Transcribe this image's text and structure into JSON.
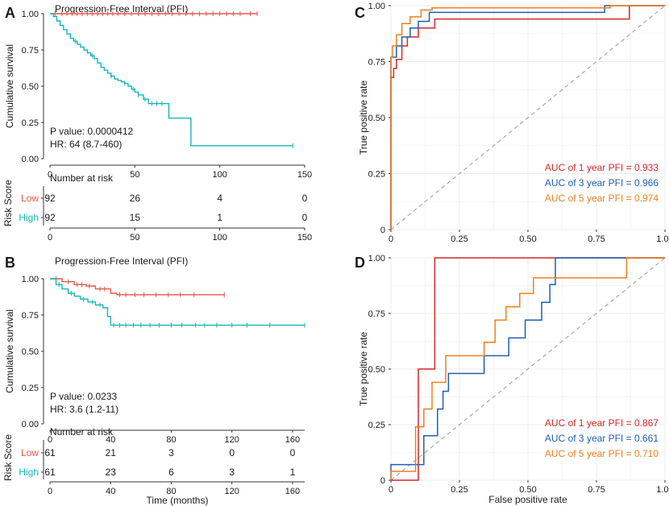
{
  "colors": {
    "low": "#e8564a",
    "high": "#16b6b6",
    "auc1": "#d62728",
    "auc3": "#1f5fb4",
    "auc5": "#f07f1e",
    "grid": "#ececec",
    "diag": "#9a9a9a"
  },
  "chart_data": [
    {
      "type": "line",
      "subtype": "kaplan-meier",
      "panel_label": "A",
      "title": "Progression-Free Interval (PFI)",
      "ylabel": "Cumulative survival",
      "xlabel": "",
      "xlim": [
        0,
        150
      ],
      "ylim": [
        0,
        1
      ],
      "xticks": [
        0,
        50,
        100,
        150
      ],
      "yticks": [
        0,
        0.25,
        0.5,
        0.75,
        1.0
      ],
      "ytick_labels": [
        "0.00",
        "0.25",
        "0.50",
        "0.75",
        "1.00"
      ],
      "p_value": "P value: 0.0000412",
      "hr": "HR: 64 (8.7-460)",
      "series": [
        {
          "name": "Low",
          "key": "low",
          "x": [
            0,
            122
          ],
          "y": [
            1.0,
            1.0
          ],
          "censor_x": [
            3,
            7,
            10,
            13,
            16,
            19,
            22,
            25,
            28,
            31,
            34,
            37,
            40,
            44,
            48,
            52,
            56,
            60,
            64,
            68,
            72,
            76,
            80,
            84,
            88,
            92,
            96,
            100,
            104,
            108,
            112,
            118,
            122
          ]
        },
        {
          "name": "High",
          "key": "high",
          "x": [
            0,
            2,
            4,
            6,
            8,
            10,
            12,
            14,
            16,
            18,
            20,
            22,
            24,
            26,
            28,
            30,
            32,
            34,
            36,
            38,
            40,
            42,
            44,
            46,
            48,
            50,
            52,
            55,
            58,
            62,
            66,
            70,
            76,
            83,
            143
          ],
          "y": [
            1.0,
            0.98,
            0.95,
            0.92,
            0.89,
            0.86,
            0.83,
            0.81,
            0.79,
            0.77,
            0.75,
            0.73,
            0.71,
            0.69,
            0.66,
            0.63,
            0.61,
            0.59,
            0.57,
            0.55,
            0.54,
            0.53,
            0.52,
            0.5,
            0.48,
            0.46,
            0.44,
            0.41,
            0.38,
            0.38,
            0.38,
            0.28,
            0.28,
            0.09,
            0.09
          ],
          "censor_x": [
            15,
            25,
            36,
            44,
            49,
            52,
            56,
            60,
            63,
            66,
            143
          ]
        }
      ],
      "risk_table": {
        "title": "Number at risk",
        "ylabel": "Risk Score",
        "times": [
          0,
          50,
          100,
          150
        ],
        "rows": [
          {
            "name": "Low",
            "key": "low",
            "values": [
              "92",
              "26",
              "4",
              "0"
            ]
          },
          {
            "name": "High",
            "key": "high",
            "values": [
              "92",
              "15",
              "1",
              "0"
            ]
          }
        ],
        "xticks": [
          0,
          50,
          100,
          150
        ]
      }
    },
    {
      "type": "line",
      "subtype": "kaplan-meier",
      "panel_label": "B",
      "title": "Progression-Free Interval (PFI)",
      "ylabel": "Cumulative survival",
      "xlabel": "Time (months)",
      "xlim": [
        0,
        168
      ],
      "ylim": [
        0,
        1
      ],
      "xticks": [
        0,
        40,
        80,
        120,
        160
      ],
      "yticks": [
        0,
        0.25,
        0.5,
        0.75,
        1.0
      ],
      "ytick_labels": [
        "0.00",
        "0.25",
        "0.50",
        "0.75",
        "1.00"
      ],
      "p_value": "P value: 0.0233",
      "hr": "HR: 3.6 (1.2-11)",
      "series": [
        {
          "name": "Low",
          "key": "low",
          "x": [
            0,
            8,
            16,
            24,
            30,
            40,
            44,
            115
          ],
          "y": [
            1.0,
            0.98,
            0.96,
            0.95,
            0.93,
            0.9,
            0.89,
            0.89
          ],
          "censor_x": [
            4,
            12,
            18,
            21,
            26,
            33,
            36,
            46,
            50,
            56,
            62,
            70,
            78,
            86,
            95,
            115
          ]
        },
        {
          "name": "High",
          "key": "high",
          "x": [
            0,
            4,
            8,
            12,
            16,
            20,
            25,
            30,
            35,
            38,
            40,
            168
          ],
          "y": [
            1.0,
            0.96,
            0.93,
            0.9,
            0.88,
            0.86,
            0.84,
            0.82,
            0.8,
            0.74,
            0.68,
            0.68
          ],
          "censor_x": [
            6,
            14,
            22,
            28,
            33,
            42,
            46,
            50,
            55,
            60,
            66,
            72,
            80,
            87,
            96,
            102,
            110,
            120,
            130,
            145,
            168
          ]
        }
      ],
      "risk_table": {
        "title": "Number at risk",
        "ylabel": "Risk Score",
        "times": [
          0,
          40,
          80,
          120,
          160
        ],
        "rows": [
          {
            "name": "Low",
            "key": "low",
            "values": [
              "61",
              "21",
              "3",
              "0",
              "0"
            ]
          },
          {
            "name": "High",
            "key": "high",
            "values": [
              "61",
              "23",
              "6",
              "3",
              "1"
            ]
          }
        ],
        "xticks": [
          0,
          40,
          80,
          120,
          160
        ]
      }
    },
    {
      "type": "line",
      "subtype": "roc",
      "panel_label": "C",
      "title": "",
      "xlabel": "",
      "ylabel": "True positive rate",
      "xlim": [
        0,
        1
      ],
      "ylim": [
        0,
        1
      ],
      "xticks": [
        0,
        0.25,
        0.5,
        0.75,
        1.0
      ],
      "tick_labels": [
        "0",
        "0.25",
        "0.50",
        "0.75",
        "1.00"
      ],
      "legend_position": "bottom-right",
      "series": [
        {
          "name": "AUC of 1 year PFI = 0.933",
          "key": "auc1",
          "x": [
            0,
            0,
            0.01,
            0.01,
            0.02,
            0.02,
            0.04,
            0.04,
            0.06,
            0.06,
            0.1,
            0.1,
            0.16,
            0.16,
            0.87,
            0.87,
            1.0
          ],
          "y": [
            0,
            0.68,
            0.68,
            0.72,
            0.72,
            0.76,
            0.76,
            0.82,
            0.82,
            0.86,
            0.86,
            0.9,
            0.9,
            0.94,
            0.94,
            1.0,
            1.0
          ]
        },
        {
          "name": "AUC of 3 year PFI = 0.966",
          "key": "auc3",
          "x": [
            0,
            0,
            0.02,
            0.02,
            0.04,
            0.04,
            0.07,
            0.07,
            0.1,
            0.1,
            0.14,
            0.14,
            0.78,
            0.78,
            1.0
          ],
          "y": [
            0,
            0.77,
            0.77,
            0.82,
            0.82,
            0.86,
            0.86,
            0.9,
            0.9,
            0.93,
            0.93,
            0.97,
            0.97,
            1.0,
            1.0
          ],
          "visible_start_x": 0.002
        },
        {
          "name": "AUC of 5 year PFI = 0.974",
          "key": "auc5",
          "x": [
            0,
            0,
            0.005,
            0.005,
            0.02,
            0.02,
            0.04,
            0.04,
            0.07,
            0.07,
            0.11,
            0.11,
            0.15,
            0.15,
            0.8,
            0.8,
            1.0
          ],
          "y": [
            0,
            0.77,
            0.77,
            0.82,
            0.82,
            0.87,
            0.87,
            0.92,
            0.92,
            0.95,
            0.95,
            0.98,
            0.98,
            0.99,
            0.99,
            1.0,
            1.0
          ]
        }
      ]
    },
    {
      "type": "line",
      "subtype": "roc",
      "panel_label": "D",
      "title": "",
      "xlabel": "False positive rate",
      "ylabel": "True positive rate",
      "xlim": [
        0,
        1
      ],
      "ylim": [
        0,
        1
      ],
      "xticks": [
        0,
        0.25,
        0.5,
        0.75,
        1.0
      ],
      "tick_labels": [
        "0",
        "0.25",
        "0.50",
        "0.75",
        "1.00"
      ],
      "legend_position": "bottom-right",
      "series": [
        {
          "name": "AUC of 1 year PFI = 0.867",
          "key": "auc1",
          "x": [
            0,
            0.1,
            0.1,
            0.16,
            0.16,
            1.0
          ],
          "y": [
            0,
            0,
            0.5,
            0.5,
            1.0,
            1.0
          ]
        },
        {
          "name": "AUC of 3 year PFI = 0.661",
          "key": "auc3",
          "x": [
            0,
            0,
            0.12,
            0.12,
            0.17,
            0.17,
            0.19,
            0.19,
            0.21,
            0.21,
            0.34,
            0.34,
            0.43,
            0.43,
            0.49,
            0.49,
            0.55,
            0.55,
            0.58,
            0.58,
            0.6,
            0.6,
            0.87,
            0.87,
            1.0
          ],
          "y": [
            0,
            0.07,
            0.07,
            0.2,
            0.2,
            0.32,
            0.32,
            0.4,
            0.4,
            0.48,
            0.48,
            0.56,
            0.56,
            0.64,
            0.64,
            0.72,
            0.72,
            0.8,
            0.8,
            0.88,
            0.88,
            1.0,
            1.0,
            1.0,
            1.0
          ]
        },
        {
          "name": "AUC of 5 year PFI = 0.710",
          "key": "auc5",
          "x": [
            0,
            0,
            0.09,
            0.09,
            0.12,
            0.12,
            0.15,
            0.15,
            0.2,
            0.2,
            0.34,
            0.34,
            0.38,
            0.38,
            0.42,
            0.42,
            0.47,
            0.47,
            0.52,
            0.52,
            0.86,
            0.86,
            1.0
          ],
          "y": [
            0,
            0.04,
            0.04,
            0.24,
            0.24,
            0.32,
            0.32,
            0.44,
            0.44,
            0.56,
            0.56,
            0.62,
            0.62,
            0.72,
            0.72,
            0.78,
            0.78,
            0.84,
            0.84,
            0.91,
            0.91,
            1.0,
            1.0
          ]
        }
      ]
    }
  ]
}
